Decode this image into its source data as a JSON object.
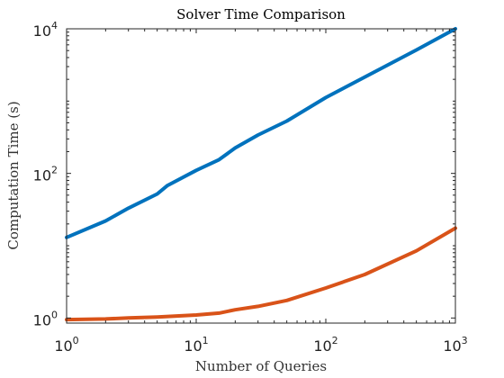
{
  "chart_data": {
    "type": "line",
    "title": "Solver Time Comparison",
    "xlabel": "Number of Queries",
    "ylabel": "Computation Time (s)",
    "xscale": "log",
    "yscale": "log",
    "xlim": [
      1,
      1000
    ],
    "ylim": [
      0.85,
      10000
    ],
    "grid": false,
    "legend": "none",
    "x_ticks": [
      {
        "value": 1,
        "base": "10",
        "exp": "0"
      },
      {
        "value": 10,
        "base": "10",
        "exp": "1"
      },
      {
        "value": 100,
        "base": "10",
        "exp": "2"
      },
      {
        "value": 1000,
        "base": "10",
        "exp": "3"
      }
    ],
    "y_ticks": [
      {
        "value": 1,
        "base": "10",
        "exp": "0"
      },
      {
        "value": 100,
        "base": "10",
        "exp": "2"
      },
      {
        "value": 10000,
        "base": "10",
        "exp": "4"
      }
    ],
    "series": [
      {
        "color": "#0072BD",
        "x": [
          1,
          2,
          3,
          5,
          6,
          10,
          15,
          20,
          30,
          50,
          100,
          200,
          500,
          1000
        ],
        "y": [
          13,
          22,
          33,
          52,
          68,
          110,
          155,
          225,
          340,
          530,
          1120,
          2150,
          5100,
          10000
        ]
      },
      {
        "color": "#D95319",
        "x": [
          1,
          2,
          3,
          5,
          10,
          15,
          20,
          30,
          50,
          100,
          200,
          500,
          1000
        ],
        "y": [
          0.95,
          0.97,
          1.0,
          1.03,
          1.1,
          1.17,
          1.3,
          1.45,
          1.75,
          2.6,
          4.0,
          8.5,
          17.5
        ]
      }
    ]
  }
}
